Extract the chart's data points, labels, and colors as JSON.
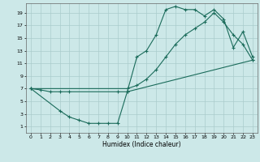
{
  "title": "",
  "xlabel": "Humidex (Indice chaleur)",
  "bg_color": "#cce8e8",
  "grid_color": "#aacccc",
  "line_color": "#1a6b5a",
  "xlim": [
    -0.5,
    23.5
  ],
  "ylim": [
    0,
    20.5
  ],
  "xticks": [
    0,
    1,
    2,
    3,
    4,
    5,
    6,
    7,
    8,
    9,
    10,
    11,
    12,
    13,
    14,
    15,
    16,
    17,
    18,
    19,
    20,
    21,
    22,
    23
  ],
  "yticks": [
    1,
    3,
    5,
    7,
    9,
    11,
    13,
    15,
    17,
    19
  ],
  "curve1_x": [
    0,
    1,
    2,
    3,
    4,
    9,
    10,
    23
  ],
  "curve1_y": [
    7,
    6.8,
    6.5,
    6.5,
    6.5,
    6.5,
    6.5,
    11.5
  ],
  "curve2_x": [
    0,
    3,
    4,
    5,
    6,
    7,
    8,
    9,
    10,
    11,
    12,
    13,
    14,
    15,
    16,
    17,
    18,
    19,
    20,
    21,
    22,
    23
  ],
  "curve2_y": [
    7,
    3.5,
    2.5,
    2.0,
    1.5,
    1.5,
    1.5,
    1.5,
    6.5,
    12,
    13,
    15.5,
    19.5,
    20,
    19.5,
    19.5,
    18.5,
    19.5,
    18,
    13.5,
    16,
    12
  ],
  "curve3_x": [
    0,
    10,
    11,
    12,
    13,
    14,
    15,
    16,
    17,
    18,
    19,
    20,
    21,
    22,
    23
  ],
  "curve3_y": [
    7,
    7,
    7.5,
    8.5,
    10,
    12,
    14,
    15.5,
    16.5,
    17.5,
    19,
    17.5,
    15.5,
    14,
    11.5
  ]
}
